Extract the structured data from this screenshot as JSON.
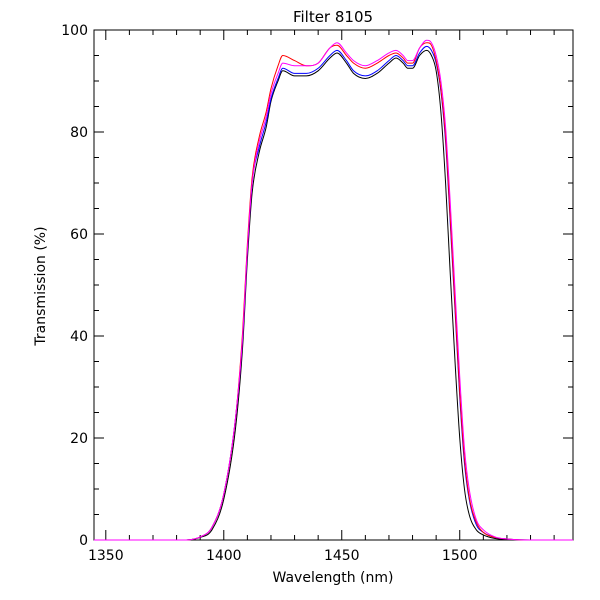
{
  "chart_data": {
    "type": "line",
    "title": "Filter 8105",
    "xlabel": "Wavelength (nm)",
    "ylabel": "Transmission (%)",
    "xlim": [
      1345,
      1548
    ],
    "ylim": [
      0,
      100
    ],
    "xticks": [
      1350,
      1400,
      1450,
      1500
    ],
    "yticks": [
      0,
      20,
      40,
      60,
      80,
      100
    ],
    "grid": false,
    "series": [
      {
        "color": "#000000",
        "x": [
          1345,
          1380,
          1390,
          1395,
          1400,
          1405,
          1408,
          1410,
          1412,
          1415,
          1418,
          1420,
          1423,
          1425,
          1430,
          1435,
          1440,
          1445,
          1448,
          1452,
          1455,
          1460,
          1465,
          1470,
          1473,
          1476,
          1478,
          1480,
          1483,
          1486,
          1488,
          1490,
          1492,
          1494,
          1496,
          1498,
          1500,
          1502,
          1504,
          1507,
          1510,
          1515,
          1520,
          1530,
          1548
        ],
        "y": [
          0,
          0,
          0.5,
          2,
          8,
          22,
          38,
          55,
          68,
          76,
          81,
          86,
          90,
          92,
          91,
          91,
          92,
          94.5,
          95.5,
          93.5,
          91.5,
          90.5,
          91.5,
          93.5,
          94.5,
          93.5,
          92.5,
          92.5,
          95,
          96,
          95,
          92,
          84,
          70,
          52,
          35,
          20,
          10,
          5,
          2,
          1,
          0.3,
          0.1,
          0,
          0
        ]
      },
      {
        "color": "#0000ff",
        "x": [
          1345,
          1380,
          1390,
          1395,
          1400,
          1405,
          1408,
          1410,
          1412,
          1415,
          1418,
          1420,
          1423,
          1425,
          1430,
          1435,
          1440,
          1445,
          1448,
          1452,
          1455,
          1460,
          1465,
          1470,
          1473,
          1476,
          1478,
          1480,
          1483,
          1486,
          1488,
          1490,
          1492,
          1494,
          1496,
          1498,
          1500,
          1502,
          1504,
          1507,
          1510,
          1515,
          1520,
          1530,
          1548
        ],
        "y": [
          0,
          0,
          0.6,
          2.5,
          9,
          24,
          40,
          57,
          70,
          77,
          82,
          86.5,
          90.5,
          92.5,
          91.5,
          91.5,
          92.5,
          95,
          96,
          94,
          92,
          91,
          92,
          94,
          95,
          94,
          93,
          93,
          95.5,
          96.8,
          96,
          93.5,
          88,
          78,
          62,
          45,
          28,
          15,
          8,
          3,
          1.5,
          0.5,
          0.2,
          0,
          0
        ]
      },
      {
        "color": "#ff0000",
        "x": [
          1345,
          1380,
          1390,
          1395,
          1400,
          1405,
          1408,
          1410,
          1412,
          1415,
          1418,
          1420,
          1423,
          1425,
          1430,
          1435,
          1440,
          1445,
          1448,
          1452,
          1455,
          1460,
          1465,
          1470,
          1473,
          1476,
          1478,
          1480,
          1483,
          1486,
          1488,
          1490,
          1492,
          1494,
          1496,
          1498,
          1500,
          1502,
          1504,
          1507,
          1510,
          1515,
          1520,
          1530,
          1548
        ],
        "y": [
          0,
          0,
          0.6,
          2.5,
          9,
          24,
          41,
          58,
          71,
          79,
          84,
          88.5,
          93,
          95,
          94,
          93,
          93.5,
          96.5,
          97,
          95,
          93.5,
          92.5,
          93.5,
          95,
          95.5,
          94.5,
          93.5,
          93.5,
          96.5,
          97.5,
          97,
          94,
          88.5,
          79,
          63,
          46,
          29,
          16,
          8.5,
          3.5,
          1.5,
          0.5,
          0.2,
          0,
          0
        ]
      },
      {
        "color": "#ff00ff",
        "x": [
          1345,
          1380,
          1390,
          1395,
          1400,
          1405,
          1408,
          1410,
          1412,
          1415,
          1418,
          1420,
          1423,
          1425,
          1430,
          1435,
          1440,
          1445,
          1448,
          1452,
          1455,
          1460,
          1465,
          1470,
          1473,
          1476,
          1478,
          1480,
          1483,
          1486,
          1488,
          1490,
          1492,
          1494,
          1496,
          1498,
          1500,
          1502,
          1504,
          1507,
          1510,
          1515,
          1520,
          1530,
          1548
        ],
        "y": [
          0,
          0,
          0.6,
          2.5,
          9,
          24,
          40,
          57,
          70,
          78,
          83,
          87.5,
          91.5,
          93.5,
          93,
          93,
          93.5,
          96.5,
          97.5,
          95.5,
          94,
          93,
          94,
          95.5,
          96,
          95,
          94,
          94,
          96.5,
          98,
          97.5,
          95,
          90,
          81,
          66,
          49,
          32,
          18,
          10,
          4,
          2,
          0.6,
          0.2,
          0,
          0
        ]
      }
    ]
  }
}
